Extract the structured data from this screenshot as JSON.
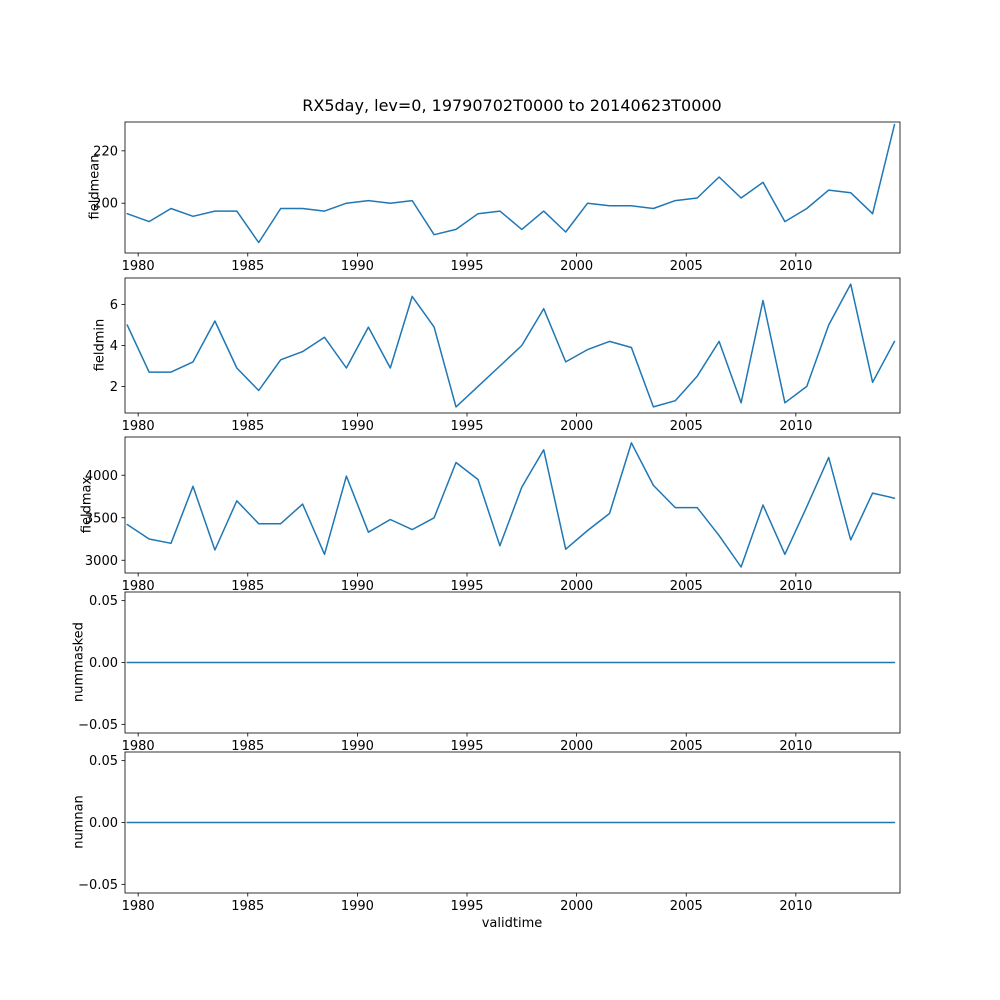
{
  "chart_data": {
    "type": "line",
    "title": "RX5day, lev=0, 19790702T0000 to 20140623T0000",
    "xlabel": "validtime",
    "line_color": "#1f77b4",
    "xlim": [
      1979.4,
      2014.75
    ],
    "xticks": [
      1980,
      1985,
      1990,
      1995,
      2000,
      2005,
      2010
    ],
    "x": [
      1979.5,
      1980.5,
      1981.5,
      1982.5,
      1983.5,
      1984.5,
      1985.5,
      1986.5,
      1987.5,
      1988.5,
      1989.5,
      1990.5,
      1991.5,
      1992.5,
      1993.5,
      1994.5,
      1995.5,
      1996.5,
      1997.5,
      1998.5,
      1999.5,
      2000.5,
      2001.5,
      2002.5,
      2003.5,
      2004.5,
      2005.5,
      2006.5,
      2007.5,
      2008.5,
      2009.5,
      2010.5,
      2011.5,
      2012.5,
      2013.5,
      2014.5
    ],
    "subplots": [
      {
        "ylabel": "fieldmean",
        "ylim": [
          181,
          231
        ],
        "yticks": [
          200,
          220
        ],
        "tick_decimals": 0,
        "values": [
          196,
          193,
          198,
          195,
          197,
          197,
          185,
          198,
          198,
          197,
          200,
          201,
          200,
          201,
          188,
          190,
          196,
          197,
          190,
          197,
          189,
          200,
          199,
          199,
          198,
          201,
          202,
          210,
          202,
          208,
          193,
          198,
          205,
          204,
          196,
          230
        ]
      },
      {
        "ylabel": "fieldmin",
        "ylim": [
          0.7,
          7.3
        ],
        "yticks": [
          2,
          4,
          6
        ],
        "tick_decimals": 0,
        "values": [
          5.0,
          2.7,
          2.7,
          3.2,
          5.2,
          2.9,
          1.8,
          3.3,
          3.7,
          4.4,
          2.9,
          4.9,
          2.9,
          6.4,
          4.9,
          1.0,
          2.0,
          3.0,
          4.0,
          5.8,
          3.2,
          3.8,
          4.2,
          3.9,
          1.0,
          1.3,
          2.5,
          4.2,
          1.2,
          6.2,
          1.2,
          2.0,
          5.0,
          7.0,
          2.2,
          4.2
        ]
      },
      {
        "ylabel": "fieldmax",
        "ylim": [
          2850,
          4450
        ],
        "yticks": [
          3000,
          3500,
          4000
        ],
        "tick_decimals": 0,
        "values": [
          3420,
          3250,
          3200,
          3870,
          3120,
          3700,
          3430,
          3430,
          3660,
          3070,
          3990,
          3330,
          3480,
          3360,
          3500,
          4150,
          3950,
          3170,
          3860,
          4300,
          3130,
          3350,
          3550,
          4380,
          3880,
          3620,
          3620,
          3290,
          2920,
          3650,
          3070,
          3630,
          4210,
          3240,
          3790,
          3730
        ]
      },
      {
        "ylabel": "nummasked",
        "ylim": [
          -0.057,
          0.057
        ],
        "yticks": [
          -0.05,
          0.0,
          0.05
        ],
        "tick_decimals": 2,
        "values": [
          0,
          0,
          0,
          0,
          0,
          0,
          0,
          0,
          0,
          0,
          0,
          0,
          0,
          0,
          0,
          0,
          0,
          0,
          0,
          0,
          0,
          0,
          0,
          0,
          0,
          0,
          0,
          0,
          0,
          0,
          0,
          0,
          0,
          0,
          0,
          0
        ]
      },
      {
        "ylabel": "numnan",
        "ylim": [
          -0.057,
          0.057
        ],
        "yticks": [
          -0.05,
          0.0,
          0.05
        ],
        "tick_decimals": 2,
        "values": [
          0,
          0,
          0,
          0,
          0,
          0,
          0,
          0,
          0,
          0,
          0,
          0,
          0,
          0,
          0,
          0,
          0,
          0,
          0,
          0,
          0,
          0,
          0,
          0,
          0,
          0,
          0,
          0,
          0,
          0,
          0,
          0,
          0,
          0,
          0,
          0
        ]
      }
    ]
  }
}
